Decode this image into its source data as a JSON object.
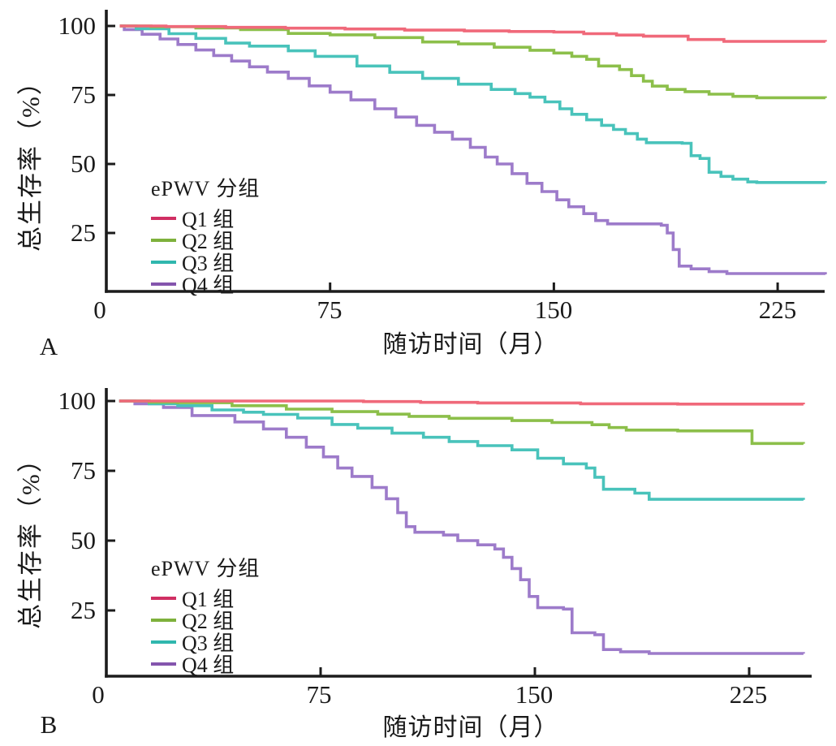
{
  "chart_data": [
    {
      "panel_letter": "A",
      "type": "line",
      "subtype": "kaplan-meier-step",
      "xlabel": "随访时间（月）",
      "ylabel": "总生存率（%）",
      "x_ticks": [
        0,
        75,
        150,
        225
      ],
      "y_ticks": [
        100,
        75,
        50,
        25
      ],
      "xlim": [
        0,
        241
      ],
      "ylim": [
        4,
        100
      ],
      "grid": false,
      "legend_position": "lower-left-inside",
      "legend_title": "ePWV 分组",
      "axis_color": "#1c1c1c",
      "series": [
        {
          "name": "Q1 组",
          "color": "#f0697a",
          "legend_color": "#d02f63",
          "points": [
            [
              4.5,
              100
            ],
            [
              20,
              99.8
            ],
            [
              40,
              99.5
            ],
            [
              60,
              99.2
            ],
            [
              80,
              98.9
            ],
            [
              100,
              98.5
            ],
            [
              120,
              98.2
            ],
            [
              135,
              98.0
            ],
            [
              150,
              97.8
            ],
            [
              160,
              97.2
            ],
            [
              171,
              96.7
            ],
            [
              180,
              96.3
            ],
            [
              195,
              95.1
            ],
            [
              207,
              94.4
            ],
            [
              241,
              94.3
            ]
          ]
        },
        {
          "name": "Q2 组",
          "color": "#8cbf4a",
          "legend_color": "#7eb13c",
          "points": [
            [
              4.5,
              100
            ],
            [
              15,
              99.7
            ],
            [
              30,
              99.3
            ],
            [
              45,
              98.7
            ],
            [
              61,
              97.3
            ],
            [
              75,
              96.8
            ],
            [
              90,
              95.8
            ],
            [
              106,
              94.2
            ],
            [
              118,
              93.5
            ],
            [
              130,
              92.3
            ],
            [
              142,
              91.2
            ],
            [
              150,
              90.2
            ],
            [
              156,
              89.0
            ],
            [
              161,
              87.9
            ],
            [
              165,
              85.5
            ],
            [
              172,
              84.2
            ],
            [
              176,
              82.0
            ],
            [
              180,
              80.0
            ],
            [
              183,
              78.2
            ],
            [
              188,
              77.0
            ],
            [
              194,
              76.2
            ],
            [
              202,
              75.3
            ],
            [
              210,
              74.5
            ],
            [
              218,
              74.0
            ],
            [
              241,
              73.9
            ]
          ]
        },
        {
          "name": "Q3 组",
          "color": "#49c3bb",
          "legend_color": "#30b7ae",
          "points": [
            [
              4.5,
              100
            ],
            [
              10,
              99.0
            ],
            [
              21,
              97.2
            ],
            [
              30,
              95.5
            ],
            [
              40,
              93.8
            ],
            [
              48,
              92.7
            ],
            [
              61,
              91.0
            ],
            [
              70,
              89.0
            ],
            [
              84,
              85.5
            ],
            [
              95,
              83.2
            ],
            [
              106,
              81.0
            ],
            [
              118,
              78.9
            ],
            [
              129,
              77.0
            ],
            [
              137,
              75.5
            ],
            [
              142,
              74.2
            ],
            [
              147,
              72.5
            ],
            [
              152,
              70.0
            ],
            [
              156,
              68.0
            ],
            [
              161,
              66.0
            ],
            [
              166,
              64.0
            ],
            [
              170,
              62.5
            ],
            [
              174,
              61.0
            ],
            [
              178,
              59.0
            ],
            [
              181,
              57.7
            ],
            [
              193,
              57.5
            ],
            [
              196,
              53.0
            ],
            [
              199,
              52.0
            ],
            [
              202,
              47.0
            ],
            [
              206,
              45.5
            ],
            [
              210,
              44.5
            ],
            [
              215,
              43.5
            ],
            [
              218,
              43.3
            ],
            [
              241,
              43.2
            ]
          ]
        },
        {
          "name": "Q4 组",
          "color": "#9d7bca",
          "legend_color": "#8455ad",
          "points": [
            [
              4.5,
              100
            ],
            [
              6,
              98.7
            ],
            [
              12,
              97.0
            ],
            [
              18,
              95.3
            ],
            [
              24,
              93.3
            ],
            [
              30,
              91.3
            ],
            [
              36,
              89.3
            ],
            [
              42,
              87.3
            ],
            [
              48,
              85.2
            ],
            [
              54,
              83.3
            ],
            [
              61,
              81.0
            ],
            [
              68,
              78.3
            ],
            [
              75,
              76.0
            ],
            [
              82,
              73.2
            ],
            [
              90,
              70.0
            ],
            [
              97,
              67.0
            ],
            [
              104,
              64.0
            ],
            [
              110,
              61.5
            ],
            [
              116,
              59.0
            ],
            [
              122,
              56.0
            ],
            [
              127,
              52.5
            ],
            [
              131,
              50.0
            ],
            [
              136,
              46.5
            ],
            [
              141,
              43.0
            ],
            [
              146,
              40.0
            ],
            [
              151,
              37.0
            ],
            [
              155,
              34.5
            ],
            [
              160,
              32.0
            ],
            [
              164,
              29.5
            ],
            [
              168,
              28.3
            ],
            [
              186,
              27.8
            ],
            [
              188,
              25.0
            ],
            [
              190,
              19.0
            ],
            [
              192,
              13.0
            ],
            [
              196,
              12.0
            ],
            [
              202,
              11.0
            ],
            [
              208,
              10.3
            ],
            [
              241,
              10.0
            ]
          ]
        }
      ]
    },
    {
      "panel_letter": "B",
      "type": "line",
      "subtype": "kaplan-meier-step",
      "xlabel": "随访时间（月）",
      "ylabel": "总生存率（%）",
      "x_ticks": [
        0,
        75,
        150,
        225
      ],
      "y_ticks": [
        100,
        75,
        50,
        25
      ],
      "xlim": [
        0,
        244
      ],
      "ylim": [
        2,
        100
      ],
      "grid": false,
      "legend_position": "lower-left-inside",
      "legend_title": "ePWV 分组",
      "axis_color": "#1c1c1c",
      "series": [
        {
          "name": "Q1 组",
          "color": "#f0697a",
          "legend_color": "#d02f63",
          "points": [
            [
              4.5,
              100
            ],
            [
              80,
              100
            ],
            [
              90,
              99.8
            ],
            [
              110,
              99.5
            ],
            [
              130,
              99.3
            ],
            [
              166,
              99.0
            ],
            [
              200,
              98.9
            ],
            [
              244,
              98.8
            ]
          ]
        },
        {
          "name": "Q2 组",
          "color": "#8cbf4a",
          "legend_color": "#7eb13c",
          "points": [
            [
              4.5,
              100
            ],
            [
              15,
              99.6
            ],
            [
              25,
              99.4
            ],
            [
              44,
              98.3
            ],
            [
              63,
              97.1
            ],
            [
              79,
              96.2
            ],
            [
              95,
              95.3
            ],
            [
              106,
              94.5
            ],
            [
              120,
              93.8
            ],
            [
              142,
              93.0
            ],
            [
              156,
              92.3
            ],
            [
              170,
              91.5
            ],
            [
              176,
              90.5
            ],
            [
              182,
              89.6
            ],
            [
              200,
              89.3
            ],
            [
              226,
              84.8
            ],
            [
              244,
              84.7
            ]
          ]
        },
        {
          "name": "Q3 组",
          "color": "#49c3bb",
          "legend_color": "#30b7ae",
          "points": [
            [
              4.5,
              100
            ],
            [
              15,
              99.0
            ],
            [
              25,
              98.3
            ],
            [
              37,
              96.8
            ],
            [
              48,
              96.0
            ],
            [
              55,
              95.2
            ],
            [
              67,
              93.9
            ],
            [
              79,
              91.6
            ],
            [
              88,
              90.3
            ],
            [
              100,
              88.5
            ],
            [
              111,
              87.0
            ],
            [
              120,
              85.5
            ],
            [
              130,
              84.0
            ],
            [
              142,
              82.5
            ],
            [
              151,
              79.5
            ],
            [
              160,
              77.5
            ],
            [
              168,
              76.0
            ],
            [
              171,
              72.7
            ],
            [
              174,
              68.4
            ],
            [
              185,
              67.0
            ],
            [
              190,
              64.8
            ],
            [
              244,
              64.6
            ]
          ]
        },
        {
          "name": "Q4 组",
          "color": "#9d7bca",
          "legend_color": "#8455ad",
          "points": [
            [
              4.5,
              100
            ],
            [
              10,
              99.0
            ],
            [
              20,
              97.7
            ],
            [
              30,
              94.8
            ],
            [
              45,
              92.5
            ],
            [
              55,
              90.0
            ],
            [
              63,
              87.0
            ],
            [
              70,
              83.5
            ],
            [
              76,
              80.0
            ],
            [
              81,
              76.0
            ],
            [
              86,
              73.0
            ],
            [
              93,
              69.0
            ],
            [
              98,
              65.0
            ],
            [
              102,
              60.0
            ],
            [
              105,
              55.0
            ],
            [
              108,
              53.0
            ],
            [
              118,
              52.0
            ],
            [
              123,
              50.0
            ],
            [
              130,
              48.5
            ],
            [
              136,
              47.0
            ],
            [
              139,
              44.0
            ],
            [
              142,
              40.0
            ],
            [
              145,
              36.0
            ],
            [
              148,
              30.0
            ],
            [
              151,
              26.0
            ],
            [
              160,
              25.5
            ],
            [
              163,
              17.0
            ],
            [
              171,
              16.3
            ],
            [
              174,
              11.0
            ],
            [
              180,
              10.2
            ],
            [
              190,
              9.6
            ],
            [
              244,
              9.5
            ]
          ]
        }
      ]
    }
  ]
}
